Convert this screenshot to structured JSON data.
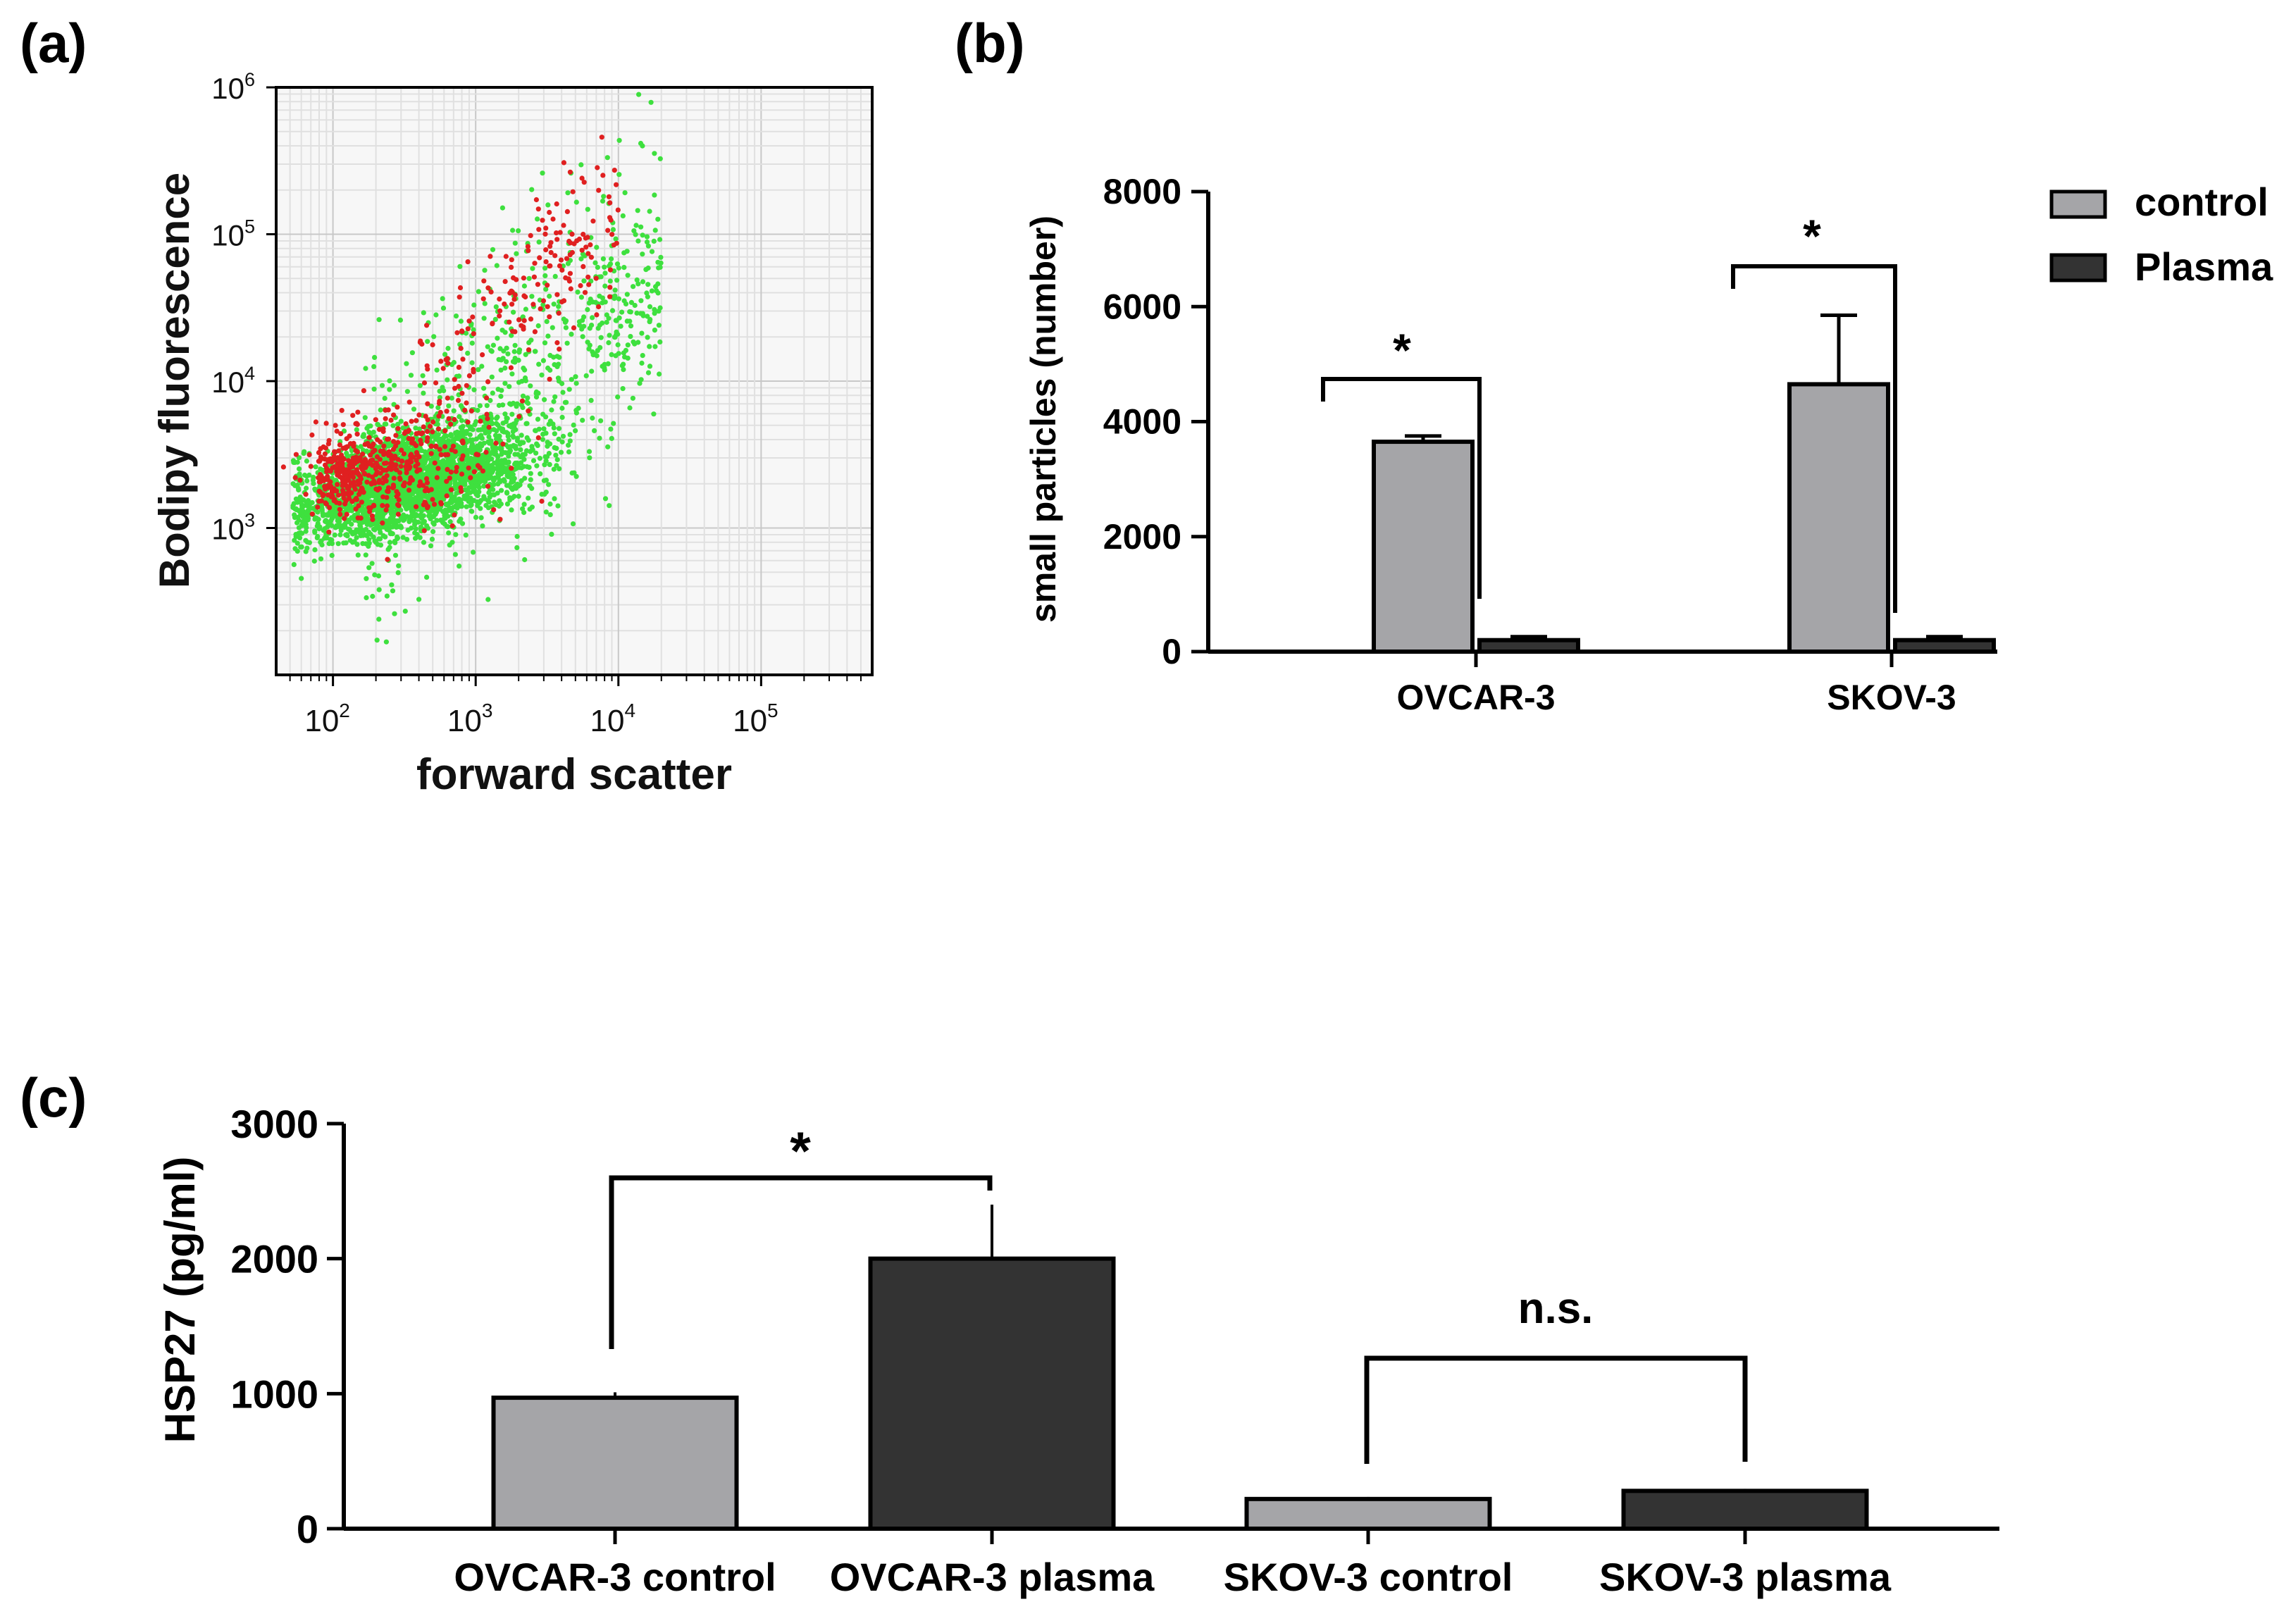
{
  "colors": {
    "control": "#a5a5a8",
    "plasma": "#333333",
    "red_events": "#e02020",
    "green_events": "#3ee03e",
    "axis": "#000000",
    "plot_bg": "#f7f7f7",
    "grid": "#d8d8d8"
  },
  "chart_data": [
    {
      "panel": "(a)",
      "type": "scatter",
      "xlabel": "forward scatter",
      "ylabel": "Bodipy fluorescence",
      "x_scale": "log",
      "y_scale": "log",
      "xlim": [
        40,
        600000
      ],
      "ylim": [
        100,
        1000000
      ],
      "x_ticks": [
        {
          "value": 100,
          "base": "10",
          "exp": "2"
        },
        {
          "value": 1000,
          "base": "10",
          "exp": "3"
        },
        {
          "value": 10000,
          "base": "10",
          "exp": "4"
        },
        {
          "value": 100000,
          "base": "10",
          "exp": "5"
        }
      ],
      "y_ticks": [
        {
          "value": 1000,
          "base": "10",
          "exp": "3"
        },
        {
          "value": 10000,
          "base": "10",
          "exp": "4"
        },
        {
          "value": 100000,
          "base": "10",
          "exp": "5"
        },
        {
          "value": 1000000,
          "base": "10",
          "exp": "6"
        }
      ],
      "populations": [
        {
          "name": "green events",
          "color": "#3ee03e",
          "count": 3200,
          "center_log_x": 2.55,
          "center_log_y": 3.3,
          "spread": "broad"
        },
        {
          "name": "red events",
          "color": "#e02020",
          "count": 700,
          "center_log_x": 2.7,
          "center_log_y": 3.6,
          "spread": "upper tail"
        }
      ]
    },
    {
      "panel": "(b)",
      "type": "bar",
      "ylabel": "small particles (number)",
      "ylim": [
        0,
        8000
      ],
      "y_ticks": [
        0,
        2000,
        4000,
        6000,
        8000
      ],
      "categories": [
        "OVCAR-3",
        "SKOV-3"
      ],
      "series": [
        {
          "name": "control",
          "color": "#a5a5a8",
          "values": [
            3650,
            4650
          ],
          "errors": [
            100,
            1200
          ]
        },
        {
          "name": "Plasma",
          "color": "#333333",
          "values": [
            200,
            200
          ],
          "errors": [
            60,
            60
          ]
        }
      ],
      "legend_position": "top-right",
      "annotations": [
        {
          "text": "*",
          "category": "OVCAR-3"
        },
        {
          "text": "*",
          "category": "SKOV-3"
        }
      ]
    },
    {
      "panel": "(c)",
      "type": "bar",
      "ylabel": "HSP27 (pg/ml)",
      "ylim": [
        0,
        3000
      ],
      "y_ticks": [
        0,
        1000,
        2000,
        3000
      ],
      "categories": [
        "OVCAR-3 control",
        "OVCAR-3 plasma",
        "SKOV-3 control",
        "SKOV-3 plasma"
      ],
      "values": [
        970,
        2000,
        220,
        280
      ],
      "errors": [
        40,
        400,
        15,
        15
      ],
      "colors": [
        "#a5a5a8",
        "#333333",
        "#a5a5a8",
        "#333333"
      ],
      "annotations": [
        {
          "text": "*",
          "between": [
            "OVCAR-3 control",
            "OVCAR-3 plasma"
          ]
        },
        {
          "text": "n.s.",
          "between": [
            "SKOV-3 control",
            "SKOV-3 plasma"
          ]
        }
      ]
    }
  ]
}
